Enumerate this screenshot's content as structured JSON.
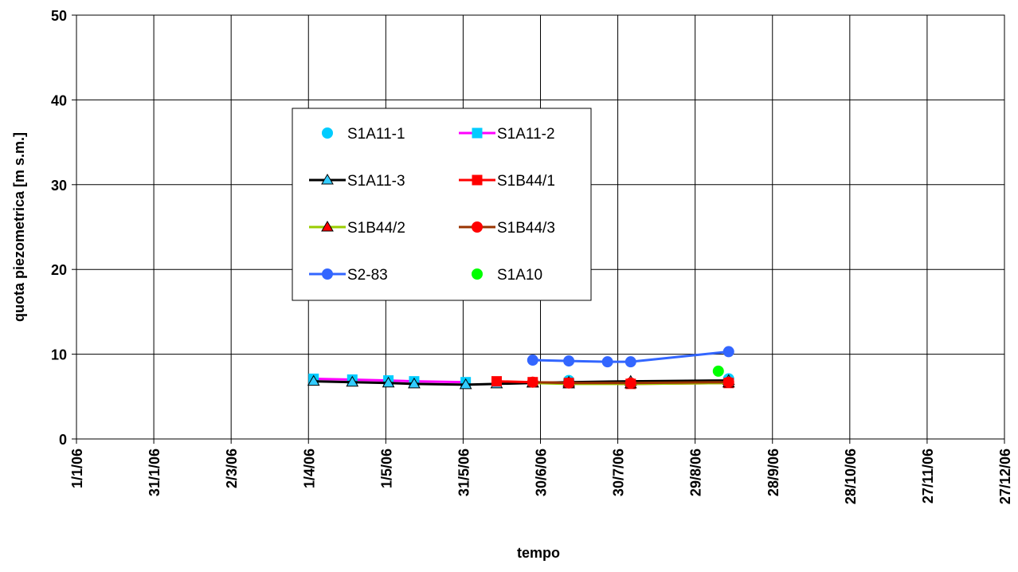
{
  "chart_data": {
    "type": "line",
    "x_label": "tempo",
    "y_label": "quota piezometrica [m s.m.]",
    "xlim": [
      "2006-01-01",
      "2006-12-27"
    ],
    "xticks": [
      {
        "value": "2006-01-01",
        "label": "1/1/06"
      },
      {
        "value": "2006-01-31",
        "label": "31/1/06"
      },
      {
        "value": "2006-03-02",
        "label": "2/3/06"
      },
      {
        "value": "2006-04-01",
        "label": "1/4/06"
      },
      {
        "value": "2006-05-01",
        "label": "1/5/06"
      },
      {
        "value": "2006-05-31",
        "label": "31/5/06"
      },
      {
        "value": "2006-06-30",
        "label": "30/6/06"
      },
      {
        "value": "2006-07-30",
        "label": "30/7/06"
      },
      {
        "value": "2006-08-29",
        "label": "29/8/06"
      },
      {
        "value": "2006-09-28",
        "label": "28/9/06"
      },
      {
        "value": "2006-10-28",
        "label": "28/10/06"
      },
      {
        "value": "2006-11-27",
        "label": "27/11/06"
      },
      {
        "value": "2006-12-27",
        "label": "27/12/06"
      }
    ],
    "ylim": [
      0,
      50
    ],
    "yticks": [
      0,
      10,
      20,
      30,
      40,
      50
    ],
    "grid": true,
    "series": [
      {
        "name": "S1A11-1",
        "color": "#00ccff",
        "line": null,
        "marker": "circle",
        "x": [
          "2006-07-11",
          "2006-09-11"
        ],
        "values": [
          6.9,
          7.1
        ]
      },
      {
        "name": "S1A11-2",
        "color": "#00ccff",
        "line": "#ff00ff",
        "marker": "square",
        "x": [
          "2006-04-03",
          "2006-04-18",
          "2006-05-02",
          "2006-05-12",
          "2006-06-01"
        ],
        "values": [
          7.1,
          7.0,
          6.9,
          6.8,
          6.7
        ]
      },
      {
        "name": "S1A11-3",
        "color": "#33ccff",
        "line": "#000000",
        "marker": "triangle",
        "x": [
          "2006-04-03",
          "2006-04-18",
          "2006-05-02",
          "2006-05-12",
          "2006-06-01",
          "2006-06-13",
          "2006-06-27",
          "2006-07-11",
          "2006-08-04",
          "2006-09-11"
        ],
        "values": [
          6.8,
          6.7,
          6.6,
          6.5,
          6.4,
          6.5,
          6.6,
          6.7,
          6.8,
          6.9
        ]
      },
      {
        "name": "S1B44/1",
        "color": "#ff0000",
        "line": "#ff0000",
        "marker": "square",
        "x": [
          "2006-06-13",
          "2006-06-27",
          "2006-07-11",
          "2006-08-04",
          "2006-09-11"
        ],
        "values": [
          6.8,
          6.7,
          6.6,
          6.5,
          6.6
        ]
      },
      {
        "name": "S1B44/2",
        "color": "#ff0000",
        "line": "#99cc00",
        "marker": "triangle",
        "x": [
          "2006-06-27",
          "2006-07-11",
          "2006-08-04",
          "2006-09-11"
        ],
        "values": [
          6.6,
          6.5,
          6.5,
          6.6
        ]
      },
      {
        "name": "S1B44/3",
        "color": "#ff0000",
        "line": "#993300",
        "marker": "circle",
        "x": [
          "2006-06-27",
          "2006-07-11",
          "2006-08-04",
          "2006-09-11"
        ],
        "values": [
          6.7,
          6.6,
          6.6,
          6.7
        ]
      },
      {
        "name": "S2-83",
        "color": "#3366ff",
        "line": "#3366ff",
        "marker": "circle",
        "x": [
          "2006-06-27",
          "2006-07-11",
          "2006-07-26",
          "2006-08-04",
          "2006-09-11"
        ],
        "values": [
          9.3,
          9.2,
          9.1,
          9.1,
          10.3
        ]
      },
      {
        "name": "S1A10",
        "color": "#00ff00",
        "line": null,
        "marker": "circle",
        "x": [
          "2006-09-07"
        ],
        "values": [
          8.0
        ]
      }
    ]
  }
}
